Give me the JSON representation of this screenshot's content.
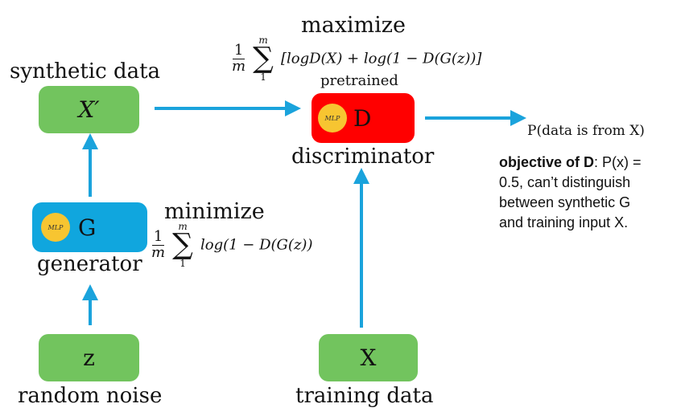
{
  "labels": {
    "synthetic_data": "synthetic data",
    "generator": "generator",
    "random_noise": "random noise",
    "discriminator": "discriminator",
    "training_data": "training data",
    "pretrained": "pretrained",
    "maximize": "maximize",
    "minimize": "minimize",
    "output": "P(data is from X)"
  },
  "boxes": {
    "x_prime": "X′",
    "g": "G",
    "z": "z",
    "d": "D",
    "x": "X"
  },
  "mlp_label": "MLP",
  "formulas": {
    "frac_num": "1",
    "frac_den": "m",
    "sum_upper": "m",
    "sum_lower": "1",
    "sum_symbol": "∑",
    "max_expr": "[logD(X) + log(1 − D(G(z))]",
    "min_expr": "log(1 − D(G(z))"
  },
  "objective": {
    "bold": "objective of D",
    "line1_rest": ": P(x) =",
    "line2": "0.5, can’t distinguish",
    "line3": "between synthetic G",
    "line4": "and training input X."
  },
  "colors": {
    "data_box": "#72c45e",
    "generator_box": "#10a6de",
    "discriminator_box": "#ff0000",
    "mlp_circle": "#f7c531",
    "arrow": "#1aa3dc"
  }
}
